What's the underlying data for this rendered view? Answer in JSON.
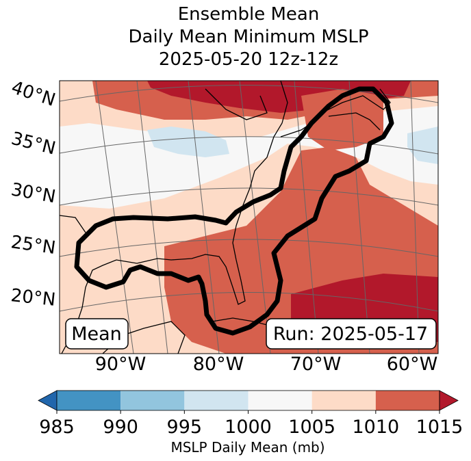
{
  "chart_data": {
    "type": "heatmap",
    "title_lines": [
      "Ensemble Mean",
      "Daily Mean Minimum MSLP",
      "2025-05-20 12z-12z"
    ],
    "map": {
      "lat_labels": [
        "40°N",
        "35°N",
        "30°N",
        "25°N",
        "20°N"
      ],
      "lon_labels": [
        "90°W",
        "80°W",
        "70°W",
        "60°W"
      ],
      "lon_range": [
        -97,
        -57
      ],
      "lat_range": [
        16,
        42
      ],
      "mean_label": "Mean",
      "run_label": "Run: 2025-05-17"
    },
    "colorbar": {
      "label": "MSLP Daily Mean (mb)",
      "ticks": [
        "985",
        "990",
        "995",
        "1000",
        "1005",
        "1010",
        "1015"
      ],
      "bins": [
        {
          "range": [
            985,
            990
          ],
          "color": "#4393c3"
        },
        {
          "range": [
            990,
            995
          ],
          "color": "#92c5de"
        },
        {
          "range": [
            995,
            1000
          ],
          "color": "#d1e5f0"
        },
        {
          "range": [
            1000,
            1005
          ],
          "color": "#f7f7f7"
        },
        {
          "range": [
            1005,
            1010
          ],
          "color": "#fddbc7"
        },
        {
          "range": [
            1010,
            1015
          ],
          "color": "#d6604d"
        }
      ],
      "under_color": "#2166ac",
      "over_color": "#b2182b"
    }
  }
}
